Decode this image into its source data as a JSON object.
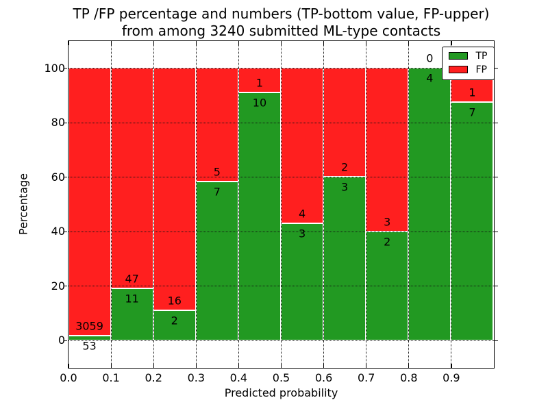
{
  "chart_data": {
    "type": "bar",
    "stacked": true,
    "title": "TP /FP percentage and numbers (TP-bottom value, FP-upper)\nfrom among 3240 submitted ML-type contacts",
    "title_lines": [
      "TP /FP percentage and numbers (TP-bottom value, FP-upper)",
      "from among 3240 submitted ML-type contacts"
    ],
    "xlabel": "Predicted probability",
    "ylabel": "Percentage",
    "total_contacts": 3240,
    "xlim": [
      0.0,
      1.0
    ],
    "ylim": [
      -10,
      110
    ],
    "grid": "dotted",
    "legend_position": "upper right",
    "categories": [
      "0.0-0.1",
      "0.1-0.2",
      "0.2-0.3",
      "0.3-0.4",
      "0.4-0.5",
      "0.5-0.6",
      "0.6-0.7",
      "0.7-0.8",
      "0.8-0.9",
      "0.9-1.0"
    ],
    "bins": [
      {
        "x0": 0.0,
        "x1": 0.1,
        "tp": 53,
        "fp": 3059
      },
      {
        "x0": 0.1,
        "x1": 0.2,
        "tp": 11,
        "fp": 47
      },
      {
        "x0": 0.2,
        "x1": 0.3,
        "tp": 2,
        "fp": 16
      },
      {
        "x0": 0.3,
        "x1": 0.4,
        "tp": 7,
        "fp": 5
      },
      {
        "x0": 0.4,
        "x1": 0.5,
        "tp": 10,
        "fp": 1
      },
      {
        "x0": 0.5,
        "x1": 0.6,
        "tp": 3,
        "fp": 4
      },
      {
        "x0": 0.6,
        "x1": 0.7,
        "tp": 3,
        "fp": 2
      },
      {
        "x0": 0.7,
        "x1": 0.8,
        "tp": 2,
        "fp": 3
      },
      {
        "x0": 0.8,
        "x1": 0.9,
        "tp": 4,
        "fp": 0
      },
      {
        "x0": 0.9,
        "x1": 1.0,
        "tp": 7,
        "fp": 1
      }
    ],
    "series": [
      {
        "name": "TP",
        "color": "#229922",
        "values": [
          53,
          11,
          2,
          7,
          10,
          3,
          3,
          2,
          4,
          7
        ]
      },
      {
        "name": "FP",
        "color": "#FF1F1F",
        "values": [
          3059,
          47,
          16,
          5,
          1,
          4,
          2,
          3,
          0,
          1
        ]
      }
    ],
    "tp_percent": [
      1.7,
      19.0,
      11.1,
      58.3,
      90.9,
      42.9,
      60.0,
      40.0,
      100.0,
      87.5
    ],
    "yticks": [
      {
        "value": 0,
        "label": "0"
      },
      {
        "value": 20,
        "label": "20"
      },
      {
        "value": 40,
        "label": "40"
      },
      {
        "value": 60,
        "label": "60"
      },
      {
        "value": 80,
        "label": "80"
      },
      {
        "value": 100,
        "label": "100"
      }
    ],
    "xticks": [
      {
        "value": 0.0,
        "label": "0.0"
      },
      {
        "value": 0.1,
        "label": "0.1"
      },
      {
        "value": 0.2,
        "label": "0.2"
      },
      {
        "value": 0.3,
        "label": "0.3"
      },
      {
        "value": 0.4,
        "label": "0.4"
      },
      {
        "value": 0.5,
        "label": "0.5"
      },
      {
        "value": 0.6,
        "label": "0.6"
      },
      {
        "value": 0.7,
        "label": "0.7"
      },
      {
        "value": 0.8,
        "label": "0.8"
      },
      {
        "value": 0.9,
        "label": "0.9"
      }
    ],
    "legend": {
      "entries": [
        {
          "label": "TP",
          "color": "#229922"
        },
        {
          "label": "FP",
          "color": "#FF1F1F"
        }
      ]
    }
  }
}
